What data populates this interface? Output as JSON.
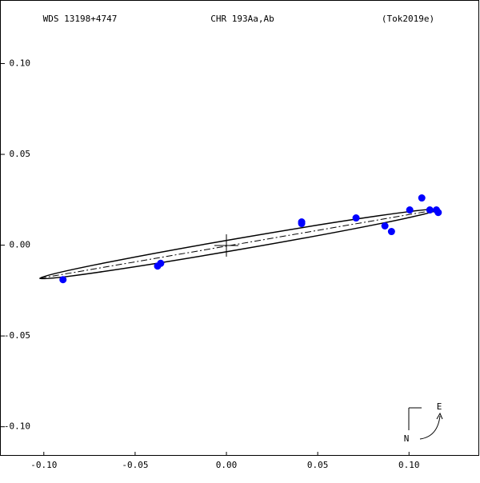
{
  "header": {
    "left": "WDS 13198+4747",
    "center": "CHR 193Aa,Ab",
    "right": "(Tok2019e)"
  },
  "compass": {
    "east": "E",
    "north": "N"
  },
  "chart_data": {
    "type": "scatter",
    "color": "#0000ff",
    "xlim": [
      -0.124,
      0.138
    ],
    "ylim": [
      -0.116,
      0.135
    ],
    "xticks": [
      {
        "value": -0.1,
        "label": "-0.10"
      },
      {
        "value": -0.05,
        "label": "-0.05"
      },
      {
        "value": 0,
        "label": "0.00"
      },
      {
        "value": 0.05,
        "label": "0.05"
      },
      {
        "value": 0.1,
        "label": "0.10"
      }
    ],
    "yticks": [
      {
        "value": 0.1,
        "label": "0.10"
      },
      {
        "value": 0.05,
        "label": "0.05"
      },
      {
        "value": 0,
        "label": "0.00"
      },
      {
        "value": -0.05,
        "label": "-0.05"
      },
      {
        "value": -0.1,
        "label": "-0.10"
      }
    ],
    "x": [
      -0.0895,
      -0.0377,
      -0.036,
      0.0412,
      0.0412,
      0.071,
      0.0868,
      0.0904,
      0.1004,
      0.107,
      0.1114,
      0.115,
      0.116
    ],
    "values": [
      -0.019,
      -0.0115,
      -0.01,
      0.0119,
      0.0128,
      0.015,
      0.0106,
      0.0075,
      0.0194,
      0.026,
      0.0194,
      0.0194,
      0.018
    ]
  }
}
